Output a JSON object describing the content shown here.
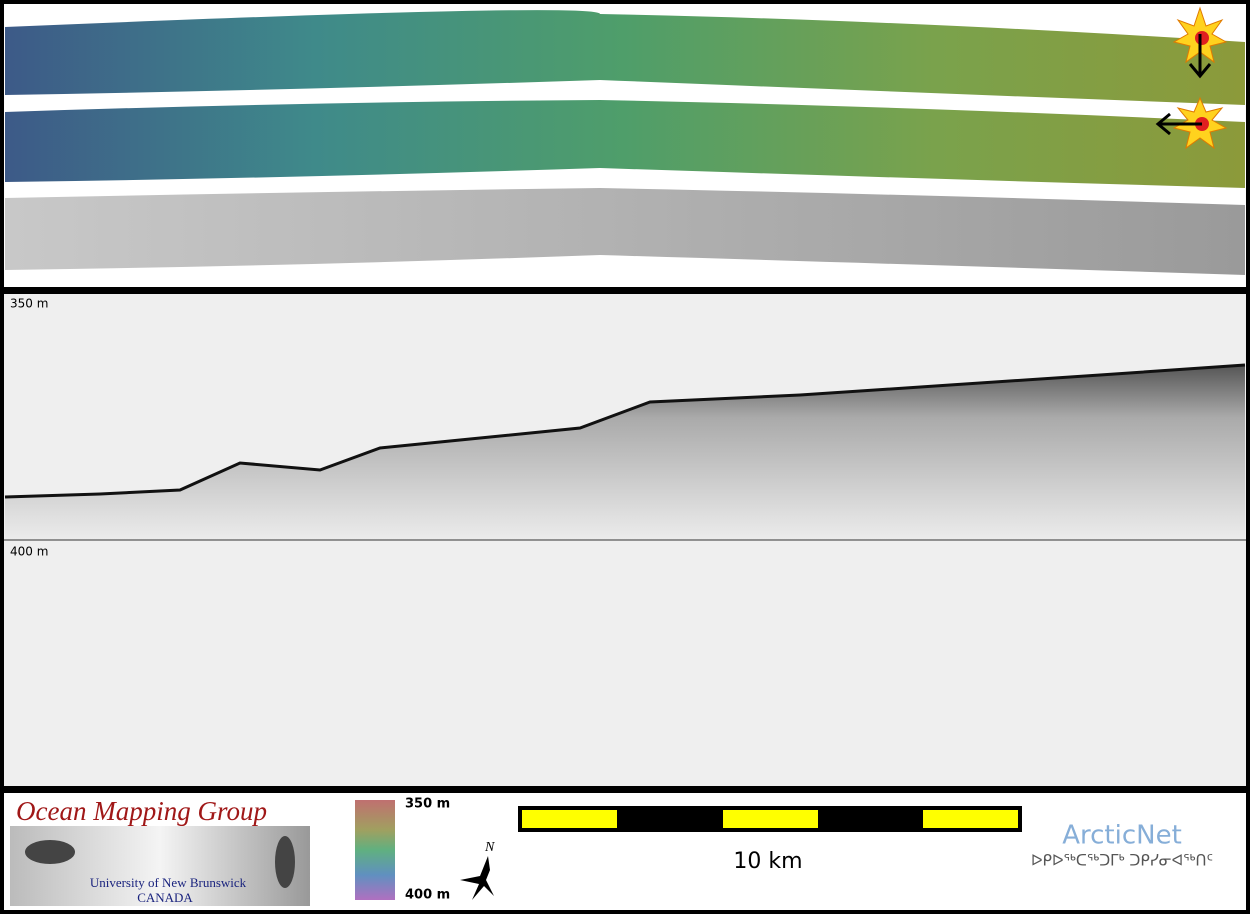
{
  "profile": {
    "top_label": "350 m",
    "bottom_label": "400 m"
  },
  "legend": {
    "group_name": "Ocean Mapping Group",
    "university": "University of New Brunswick",
    "country": "CANADA",
    "colorbar_top": "350 m",
    "colorbar_bottom": "400 m",
    "north": "N",
    "scale": "10 km",
    "partner": "ArcticNet",
    "partner_syllabics": "ᐅᑭᐅᖅᑕᖅᑐᒥᒃ ᑐᑭᓯᓂᐊᖅᑎᑦ"
  }
}
